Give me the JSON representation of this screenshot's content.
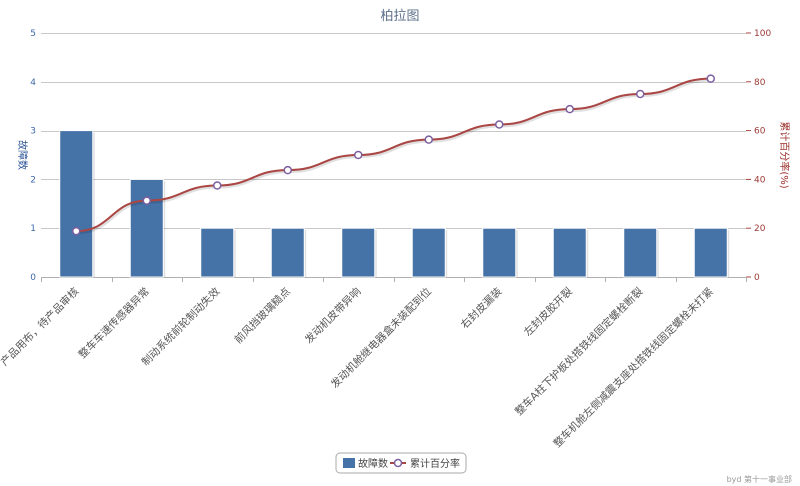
{
  "chart_data": {
    "type": "bar",
    "title": "柏拉图",
    "categories": [
      "产品用布，待产品审核",
      "整车车速传感器异常",
      "制动系统前轮制动失效",
      "前风挡玻璃糙点",
      "发动机皮带异响",
      "发动机舱继电器盒未装配到位",
      "右封皮漏装",
      "左封皮胶开裂",
      "整车A柱下护板处搭铁线固定螺栓断裂",
      "整车机舱左侧减震支座处搭铁线固定螺栓未打紧"
    ],
    "series": [
      {
        "name": "故障数",
        "type": "bar",
        "axis": "left",
        "values": [
          3,
          2,
          1,
          1,
          1,
          1,
          1,
          1,
          1,
          1
        ],
        "color": "#4572a7"
      },
      {
        "name": "累计百分率",
        "type": "line",
        "axis": "right",
        "values": [
          18.8,
          31.3,
          37.5,
          43.8,
          50.0,
          56.3,
          62.5,
          68.8,
          75.0,
          81.3
        ],
        "color": "#aa4643"
      }
    ],
    "ylabel": "故障数",
    "y2label": "累计百分率(%)",
    "ylim": [
      0,
      5
    ],
    "y2lim": [
      0,
      100
    ],
    "yticks": [
      "0",
      "1",
      "2",
      "3",
      "4",
      "5"
    ],
    "y2ticks": [
      "0",
      "20",
      "40",
      "60",
      "80",
      "100"
    ],
    "grid": true,
    "legend_position": "bottom-center"
  },
  "credit": "byd 第十一事业部"
}
